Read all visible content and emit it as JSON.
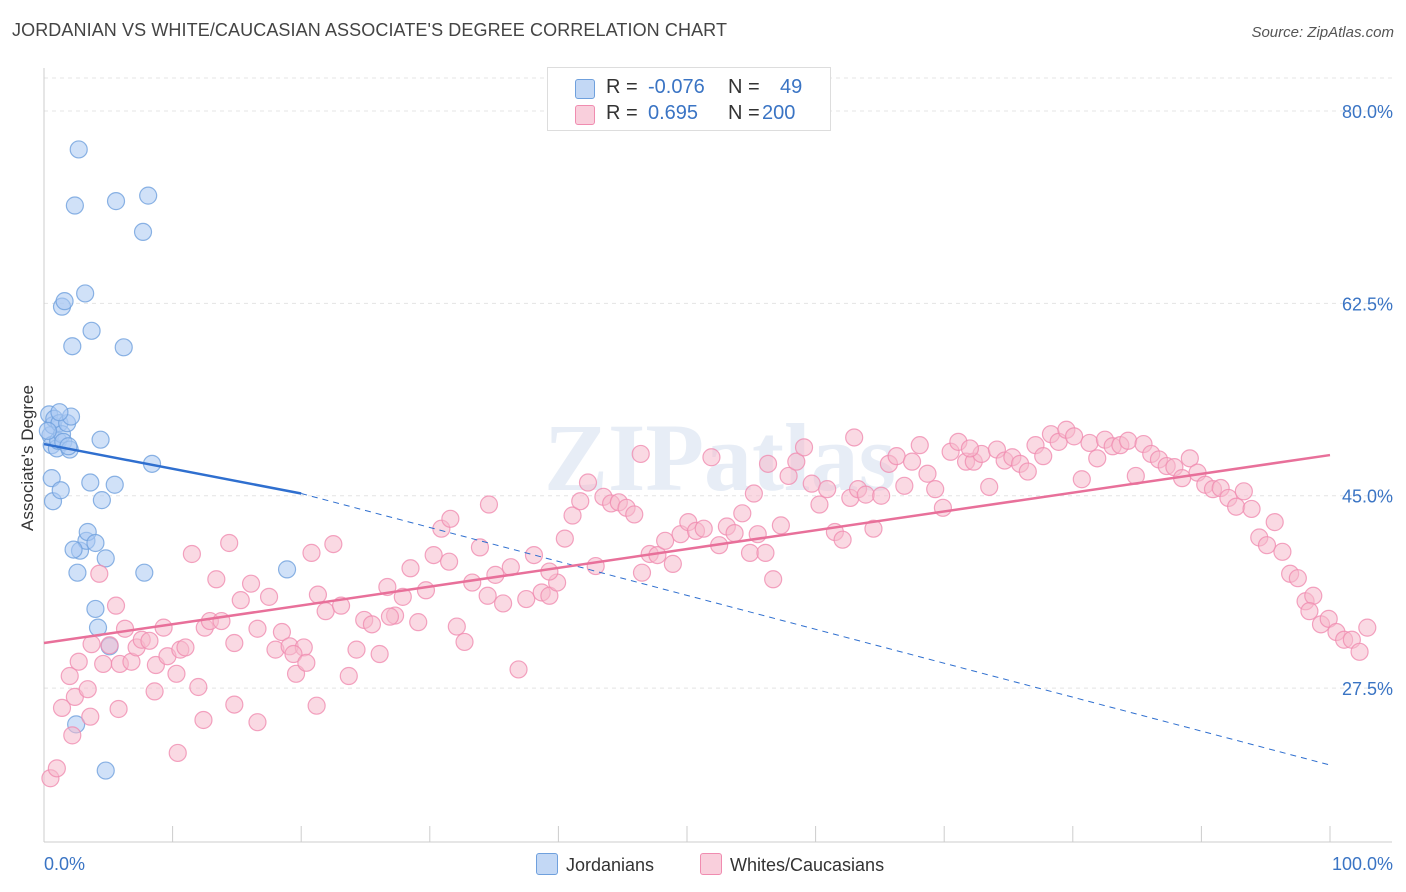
{
  "title": "JORDANIAN VS WHITE/CAUCASIAN ASSOCIATE'S DEGREE CORRELATION CHART",
  "source": "Source: ZipAtlas.com",
  "watermark": "ZIPatlas",
  "legend_top": [
    {
      "r_label": "R =",
      "r_value": "-0.076",
      "n_label": "N =",
      "n_value": "49",
      "color": "#a9c9f2"
    },
    {
      "r_label": "R =",
      "r_value": "0.695",
      "n_label": "N =",
      "n_value": "200",
      "color": "#f5b9cc"
    }
  ],
  "legend_bottom": [
    "Jordanians",
    "Whites/Caucasians"
  ],
  "chart_data": {
    "type": "scatter",
    "ylabel": "Associate's Degree",
    "xlabel": "",
    "xlim": [
      0,
      100
    ],
    "ylim": [
      13.5,
      83.0
    ],
    "x_tick_labels": [
      "0.0%",
      "100.0%"
    ],
    "y_ticks": [
      27.5,
      45.0,
      62.5,
      80.0
    ],
    "y_tick_labels": [
      "27.5%",
      "45.0%",
      "62.5%",
      "80.0%"
    ],
    "grid": true,
    "series": [
      {
        "name": "Jordanians",
        "color": "#6fa0dd",
        "fill": "#a9c9f2",
        "trend": {
          "x0": 0,
          "y0": 49.7,
          "x1": 20,
          "y1": 45.2,
          "dashed_to_x": 100,
          "dashed_to_y": 20.5
        },
        "points": [
          [
            0.4,
            52.4
          ],
          [
            0.5,
            50.5
          ],
          [
            0.6,
            49.6
          ],
          [
            0.7,
            51.4
          ],
          [
            0.8,
            52.0
          ],
          [
            1.0,
            49.3
          ],
          [
            1.1,
            50.0
          ],
          [
            1.2,
            51.6
          ],
          [
            1.4,
            50.6
          ],
          [
            1.5,
            49.9
          ],
          [
            1.8,
            51.6
          ],
          [
            2.0,
            49.2
          ],
          [
            2.1,
            52.2
          ],
          [
            0.6,
            46.6
          ],
          [
            0.7,
            44.5
          ],
          [
            1.3,
            45.5
          ],
          [
            1.4,
            62.2
          ],
          [
            1.6,
            62.7
          ],
          [
            2.2,
            58.6
          ],
          [
            2.4,
            71.4
          ],
          [
            2.6,
            38.0
          ],
          [
            2.8,
            40.0
          ],
          [
            3.2,
            63.4
          ],
          [
            2.7,
            76.5
          ],
          [
            3.3,
            40.9
          ],
          [
            3.4,
            41.7
          ],
          [
            3.6,
            46.2
          ],
          [
            3.7,
            60.0
          ],
          [
            4.0,
            40.7
          ],
          [
            4.2,
            33.0
          ],
          [
            4.0,
            34.7
          ],
          [
            4.4,
            50.1
          ],
          [
            4.5,
            44.6
          ],
          [
            4.8,
            39.3
          ],
          [
            5.1,
            31.3
          ],
          [
            5.5,
            46.0
          ],
          [
            5.6,
            71.8
          ],
          [
            6.2,
            58.5
          ],
          [
            7.7,
            69.0
          ],
          [
            7.8,
            38.0
          ],
          [
            8.1,
            72.3
          ],
          [
            8.4,
            47.9
          ],
          [
            2.5,
            24.2
          ],
          [
            4.8,
            20.0
          ],
          [
            18.9,
            38.3
          ],
          [
            2.3,
            40.1
          ],
          [
            1.9,
            49.5
          ],
          [
            1.2,
            52.6
          ],
          [
            0.3,
            50.9
          ]
        ]
      },
      {
        "name": "Whites/Caucasians",
        "color": "#f08cb0",
        "fill": "#f5b9cc",
        "trend": {
          "x0": 0,
          "y0": 31.6,
          "x1": 100,
          "y1": 48.7
        },
        "points": [
          [
            0.5,
            19.3
          ],
          [
            1.0,
            20.2
          ],
          [
            1.4,
            25.7
          ],
          [
            2.0,
            28.6
          ],
          [
            2.4,
            26.7
          ],
          [
            2.7,
            29.9
          ],
          [
            3.4,
            27.4
          ],
          [
            3.7,
            31.5
          ],
          [
            4.3,
            37.9
          ],
          [
            4.6,
            29.7
          ],
          [
            5.1,
            31.4
          ],
          [
            5.6,
            35.0
          ],
          [
            5.9,
            29.7
          ],
          [
            6.3,
            32.9
          ],
          [
            6.8,
            29.9
          ],
          [
            7.2,
            31.2
          ],
          [
            7.6,
            31.9
          ],
          [
            8.2,
            31.8
          ],
          [
            8.7,
            29.6
          ],
          [
            9.3,
            33.0
          ],
          [
            9.6,
            30.4
          ],
          [
            10.3,
            28.8
          ],
          [
            10.6,
            31.0
          ],
          [
            11.0,
            31.2
          ],
          [
            11.5,
            39.7
          ],
          [
            12.0,
            27.6
          ],
          [
            12.5,
            33.0
          ],
          [
            12.9,
            33.6
          ],
          [
            13.4,
            37.4
          ],
          [
            13.8,
            33.6
          ],
          [
            14.4,
            40.7
          ],
          [
            14.8,
            31.6
          ],
          [
            15.3,
            35.5
          ],
          [
            16.1,
            37.0
          ],
          [
            16.6,
            32.9
          ],
          [
            17.5,
            35.8
          ],
          [
            18.0,
            31.0
          ],
          [
            18.5,
            32.6
          ],
          [
            19.1,
            31.3
          ],
          [
            19.6,
            28.8
          ],
          [
            20.2,
            31.2
          ],
          [
            20.8,
            39.8
          ],
          [
            21.3,
            36.0
          ],
          [
            21.9,
            34.5
          ],
          [
            22.5,
            40.6
          ],
          [
            23.1,
            35.0
          ],
          [
            23.7,
            28.6
          ],
          [
            24.3,
            31.0
          ],
          [
            24.9,
            33.7
          ],
          [
            25.5,
            33.3
          ],
          [
            26.1,
            30.6
          ],
          [
            26.7,
            36.7
          ],
          [
            27.3,
            34.1
          ],
          [
            27.9,
            35.8
          ],
          [
            28.5,
            38.4
          ],
          [
            29.1,
            33.5
          ],
          [
            29.7,
            36.4
          ],
          [
            30.3,
            39.6
          ],
          [
            30.9,
            42.0
          ],
          [
            31.5,
            39.0
          ],
          [
            32.1,
            33.1
          ],
          [
            32.7,
            31.7
          ],
          [
            33.3,
            37.1
          ],
          [
            33.9,
            40.3
          ],
          [
            34.5,
            35.9
          ],
          [
            35.1,
            37.8
          ],
          [
            35.7,
            35.2
          ],
          [
            36.3,
            38.5
          ],
          [
            36.9,
            29.2
          ],
          [
            37.5,
            35.6
          ],
          [
            38.1,
            39.6
          ],
          [
            38.7,
            36.2
          ],
          [
            39.3,
            35.9
          ],
          [
            39.9,
            37.1
          ],
          [
            40.5,
            41.1
          ],
          [
            41.1,
            43.2
          ],
          [
            41.7,
            44.5
          ],
          [
            42.3,
            46.2
          ],
          [
            42.9,
            38.6
          ],
          [
            43.5,
            44.9
          ],
          [
            44.1,
            44.3
          ],
          [
            44.7,
            44.4
          ],
          [
            45.3,
            43.9
          ],
          [
            45.9,
            43.3
          ],
          [
            46.5,
            38.0
          ],
          [
            47.1,
            39.7
          ],
          [
            47.7,
            39.6
          ],
          [
            48.3,
            40.9
          ],
          [
            48.9,
            38.8
          ],
          [
            49.5,
            41.5
          ],
          [
            50.1,
            42.6
          ],
          [
            50.7,
            41.8
          ],
          [
            51.3,
            42.0
          ],
          [
            51.9,
            48.5
          ],
          [
            52.5,
            40.5
          ],
          [
            53.1,
            42.2
          ],
          [
            53.7,
            41.6
          ],
          [
            54.3,
            43.4
          ],
          [
            54.9,
            39.8
          ],
          [
            55.5,
            41.5
          ],
          [
            56.1,
            39.8
          ],
          [
            56.7,
            37.4
          ],
          [
            57.3,
            42.3
          ],
          [
            57.9,
            46.8
          ],
          [
            58.5,
            48.1
          ],
          [
            59.1,
            49.4
          ],
          [
            59.7,
            46.1
          ],
          [
            60.3,
            44.2
          ],
          [
            60.9,
            45.6
          ],
          [
            61.5,
            41.7
          ],
          [
            62.1,
            41.0
          ],
          [
            62.7,
            44.8
          ],
          [
            63.3,
            45.6
          ],
          [
            63.9,
            45.1
          ],
          [
            64.5,
            42.0
          ],
          [
            65.1,
            45.0
          ],
          [
            65.7,
            47.9
          ],
          [
            66.3,
            48.6
          ],
          [
            66.9,
            45.9
          ],
          [
            67.5,
            48.1
          ],
          [
            68.1,
            49.6
          ],
          [
            68.7,
            47.0
          ],
          [
            69.3,
            45.6
          ],
          [
            69.9,
            43.9
          ],
          [
            70.5,
            49.0
          ],
          [
            71.1,
            49.9
          ],
          [
            71.7,
            48.1
          ],
          [
            72.3,
            48.1
          ],
          [
            72.9,
            48.8
          ],
          [
            73.5,
            45.8
          ],
          [
            74.1,
            49.2
          ],
          [
            74.7,
            48.2
          ],
          [
            75.3,
            48.5
          ],
          [
            75.9,
            47.9
          ],
          [
            76.5,
            47.2
          ],
          [
            77.1,
            49.6
          ],
          [
            77.7,
            48.6
          ],
          [
            78.3,
            50.6
          ],
          [
            78.9,
            49.9
          ],
          [
            79.5,
            51.0
          ],
          [
            80.1,
            50.4
          ],
          [
            80.7,
            46.5
          ],
          [
            81.3,
            49.8
          ],
          [
            81.9,
            48.4
          ],
          [
            82.5,
            50.1
          ],
          [
            83.1,
            49.5
          ],
          [
            83.7,
            49.6
          ],
          [
            84.3,
            50.0
          ],
          [
            84.9,
            46.8
          ],
          [
            85.5,
            49.7
          ],
          [
            86.1,
            48.8
          ],
          [
            86.7,
            48.3
          ],
          [
            87.3,
            47.7
          ],
          [
            87.9,
            47.6
          ],
          [
            88.5,
            46.6
          ],
          [
            89.1,
            48.4
          ],
          [
            89.7,
            47.1
          ],
          [
            90.3,
            46.0
          ],
          [
            90.9,
            45.6
          ],
          [
            91.5,
            45.7
          ],
          [
            92.1,
            44.8
          ],
          [
            92.7,
            44.0
          ],
          [
            93.3,
            45.4
          ],
          [
            93.9,
            43.8
          ],
          [
            94.5,
            41.2
          ],
          [
            95.1,
            40.5
          ],
          [
            95.7,
            42.6
          ],
          [
            96.3,
            39.9
          ],
          [
            96.9,
            37.9
          ],
          [
            97.5,
            37.5
          ],
          [
            98.1,
            35.4
          ],
          [
            98.7,
            35.9
          ],
          [
            99.3,
            33.3
          ],
          [
            99.9,
            33.8
          ],
          [
            100.5,
            32.6
          ],
          [
            101.1,
            31.9
          ],
          [
            101.7,
            31.9
          ],
          [
            102.3,
            30.8
          ],
          [
            102.9,
            33.0
          ],
          [
            98.4,
            34.5
          ],
          [
            2.2,
            23.2
          ],
          [
            3.6,
            24.9
          ],
          [
            5.8,
            25.6
          ],
          [
            8.6,
            27.2
          ],
          [
            10.4,
            21.6
          ],
          [
            12.4,
            24.6
          ],
          [
            14.8,
            26.0
          ],
          [
            16.6,
            24.4
          ],
          [
            19.4,
            30.6
          ],
          [
            20.4,
            29.8
          ],
          [
            21.2,
            25.9
          ],
          [
            26.9,
            34.0
          ],
          [
            31.6,
            42.9
          ],
          [
            34.6,
            44.2
          ],
          [
            39.3,
            38.1
          ],
          [
            46.4,
            48.8
          ],
          [
            55.2,
            45.2
          ],
          [
            56.3,
            47.9
          ],
          [
            63.0,
            50.3
          ],
          [
            72.0,
            49.3
          ]
        ]
      }
    ]
  }
}
